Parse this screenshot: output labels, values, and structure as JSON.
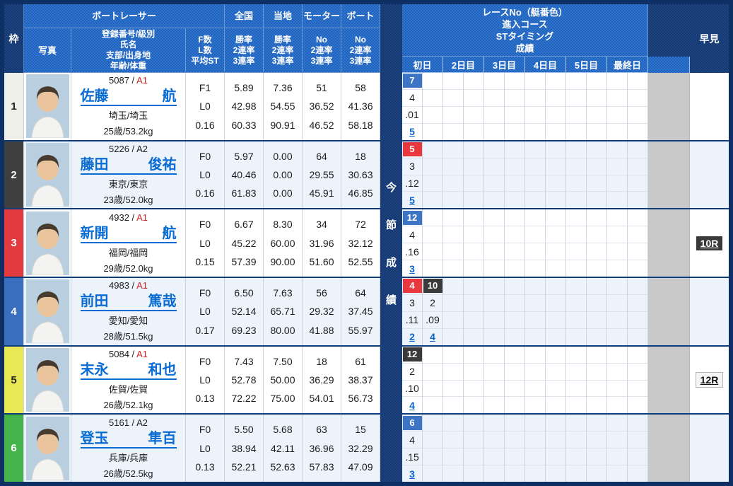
{
  "colors": {
    "navy": "#15376d",
    "header_blue": "#2263ba",
    "link_blue": "#0a65cc",
    "class_a1_red": "#cc2222",
    "class_a2_dark": "#1c1c1c",
    "boat": {
      "1": {
        "bg": "#f4f4f4",
        "fg": "#111111",
        "border": "#b5b5b5"
      },
      "2": {
        "bg": "#3a3a3a",
        "fg": "#ffffff"
      },
      "3": {
        "bg": "#e8383d",
        "fg": "#ffffff"
      },
      "4": {
        "bg": "#3d74c4",
        "fg": "#ffffff"
      },
      "5": {
        "bg": "#e9e957",
        "fg": "#222222"
      },
      "6": {
        "bg": "#44b349",
        "fg": "#ffffff"
      }
    }
  },
  "header": {
    "frame": "枠",
    "racer_group": "ボートレーサー",
    "photo": "写真",
    "info_lines": [
      "登録番号/級別",
      "氏名",
      "支部/出身地",
      "年齢/体重"
    ],
    "fl_lines": [
      "F数",
      "L数",
      "平均ST"
    ],
    "national": "全国",
    "local": "当地",
    "motor": "モーター",
    "boat": "ボート",
    "rate_lines": [
      "勝率",
      "2連率",
      "3連率"
    ],
    "no_lines": [
      "No",
      "2連率",
      "3連率"
    ],
    "series_title_lines": [
      "レースNo（艇番色）",
      "進入コース",
      "STタイミング",
      "成績"
    ],
    "days": [
      "初日",
      "2日目",
      "3日目",
      "4日目",
      "5日目",
      "最終日"
    ],
    "quick": "早見",
    "section_chars": [
      "今",
      "節",
      "成",
      "績"
    ]
  },
  "racers": [
    {
      "frame": "1",
      "frame_bg": "#efefe9",
      "frame_fg": "#222222",
      "reg": "5087 /",
      "class": "A1",
      "class_color": "#cc2222",
      "family": "佐藤",
      "given": "航",
      "branch": "埼玉/埼玉",
      "age_weight": "25歳/53.2kg",
      "fl": [
        "F1",
        "L0",
        "0.16"
      ],
      "national": [
        "5.89",
        "42.98",
        "60.33"
      ],
      "local": [
        "7.36",
        "54.55",
        "90.91"
      ],
      "motor": [
        "51",
        "36.52",
        "46.52"
      ],
      "boat": [
        "58",
        "41.36",
        "58.18"
      ],
      "day1": [
        {
          "race": "7",
          "boat_color": "4",
          "course": "4",
          "st": ".01",
          "result": "5"
        }
      ],
      "quick": null
    },
    {
      "frame": "2",
      "frame_bg": "#3f3f3f",
      "frame_fg": "#ffffff",
      "reg": "5226 /",
      "class": "A2",
      "class_color": "#1c1c1c",
      "family": "藤田",
      "given": "俊祐",
      "branch": "東京/東京",
      "age_weight": "23歳/52.0kg",
      "fl": [
        "F0",
        "L0",
        "0.16"
      ],
      "national": [
        "5.97",
        "40.46",
        "61.83"
      ],
      "local": [
        "0.00",
        "0.00",
        "0.00"
      ],
      "motor": [
        "64",
        "29.55",
        "45.91"
      ],
      "boat": [
        "18",
        "30.63",
        "46.85"
      ],
      "day1": [
        {
          "race": "5",
          "boat_color": "3",
          "course": "3",
          "st": ".12",
          "result": "5"
        }
      ],
      "quick": null
    },
    {
      "frame": "3",
      "frame_bg": "#e33a40",
      "frame_fg": "#ffffff",
      "reg": "4932 /",
      "class": "A1",
      "class_color": "#cc2222",
      "family": "新開",
      "given": "航",
      "branch": "福岡/福岡",
      "age_weight": "29歳/52.0kg",
      "fl": [
        "F0",
        "L0",
        "0.15"
      ],
      "national": [
        "6.67",
        "45.22",
        "57.39"
      ],
      "local": [
        "8.30",
        "60.00",
        "90.00"
      ],
      "motor": [
        "34",
        "31.96",
        "51.60"
      ],
      "boat": [
        "72",
        "32.12",
        "52.55"
      ],
      "day1": [
        {
          "race": "12",
          "boat_color": "4",
          "course": "4",
          "st": ".16",
          "result": "3"
        }
      ],
      "quick": {
        "label": "10R",
        "boat_color": "2"
      }
    },
    {
      "frame": "4",
      "frame_bg": "#3a6fc0",
      "frame_fg": "#ffffff",
      "reg": "4983 /",
      "class": "A1",
      "class_color": "#cc2222",
      "family": "前田",
      "given": "篤哉",
      "branch": "愛知/愛知",
      "age_weight": "28歳/51.5kg",
      "fl": [
        "F0",
        "L0",
        "0.17"
      ],
      "national": [
        "6.50",
        "52.14",
        "69.23"
      ],
      "local": [
        "7.63",
        "65.71",
        "80.00"
      ],
      "motor": [
        "56",
        "29.32",
        "41.88"
      ],
      "boat": [
        "64",
        "37.45",
        "55.97"
      ],
      "day1": [
        {
          "race": "4",
          "boat_color": "3",
          "course": "3",
          "st": ".11",
          "result": "2"
        },
        {
          "race": "10",
          "boat_color": "2",
          "course": "2",
          "st": ".09",
          "result": "4"
        }
      ],
      "quick": null
    },
    {
      "frame": "5",
      "frame_bg": "#e8e854",
      "frame_fg": "#222222",
      "reg": "5084 /",
      "class": "A1",
      "class_color": "#cc2222",
      "family": "末永",
      "given": "和也",
      "branch": "佐賀/佐賀",
      "age_weight": "26歳/52.1kg",
      "fl": [
        "F0",
        "L0",
        "0.13"
      ],
      "national": [
        "7.43",
        "52.78",
        "72.22"
      ],
      "local": [
        "7.50",
        "50.00",
        "75.00"
      ],
      "motor": [
        "18",
        "36.29",
        "54.01"
      ],
      "boat": [
        "61",
        "38.37",
        "56.73"
      ],
      "day1": [
        {
          "race": "12",
          "boat_color": "2",
          "course": "2",
          "st": ".10",
          "result": "4"
        }
      ],
      "quick": {
        "label": "12R",
        "boat_color": "1"
      }
    },
    {
      "frame": "6",
      "frame_bg": "#44b349",
      "frame_fg": "#ffffff",
      "reg": "5161 /",
      "class": "A2",
      "class_color": "#1c1c1c",
      "family": "登玉",
      "given": "隼百",
      "branch": "兵庫/兵庫",
      "age_weight": "26歳/52.5kg",
      "fl": [
        "F0",
        "L0",
        "0.13"
      ],
      "national": [
        "5.50",
        "38.94",
        "52.21"
      ],
      "local": [
        "5.68",
        "42.11",
        "52.63"
      ],
      "motor": [
        "63",
        "36.96",
        "57.83"
      ],
      "boat": [
        "15",
        "32.29",
        "47.09"
      ],
      "day1": [
        {
          "race": "6",
          "boat_color": "4",
          "course": "4",
          "st": ".15",
          "result": "3"
        }
      ],
      "quick": null
    }
  ]
}
